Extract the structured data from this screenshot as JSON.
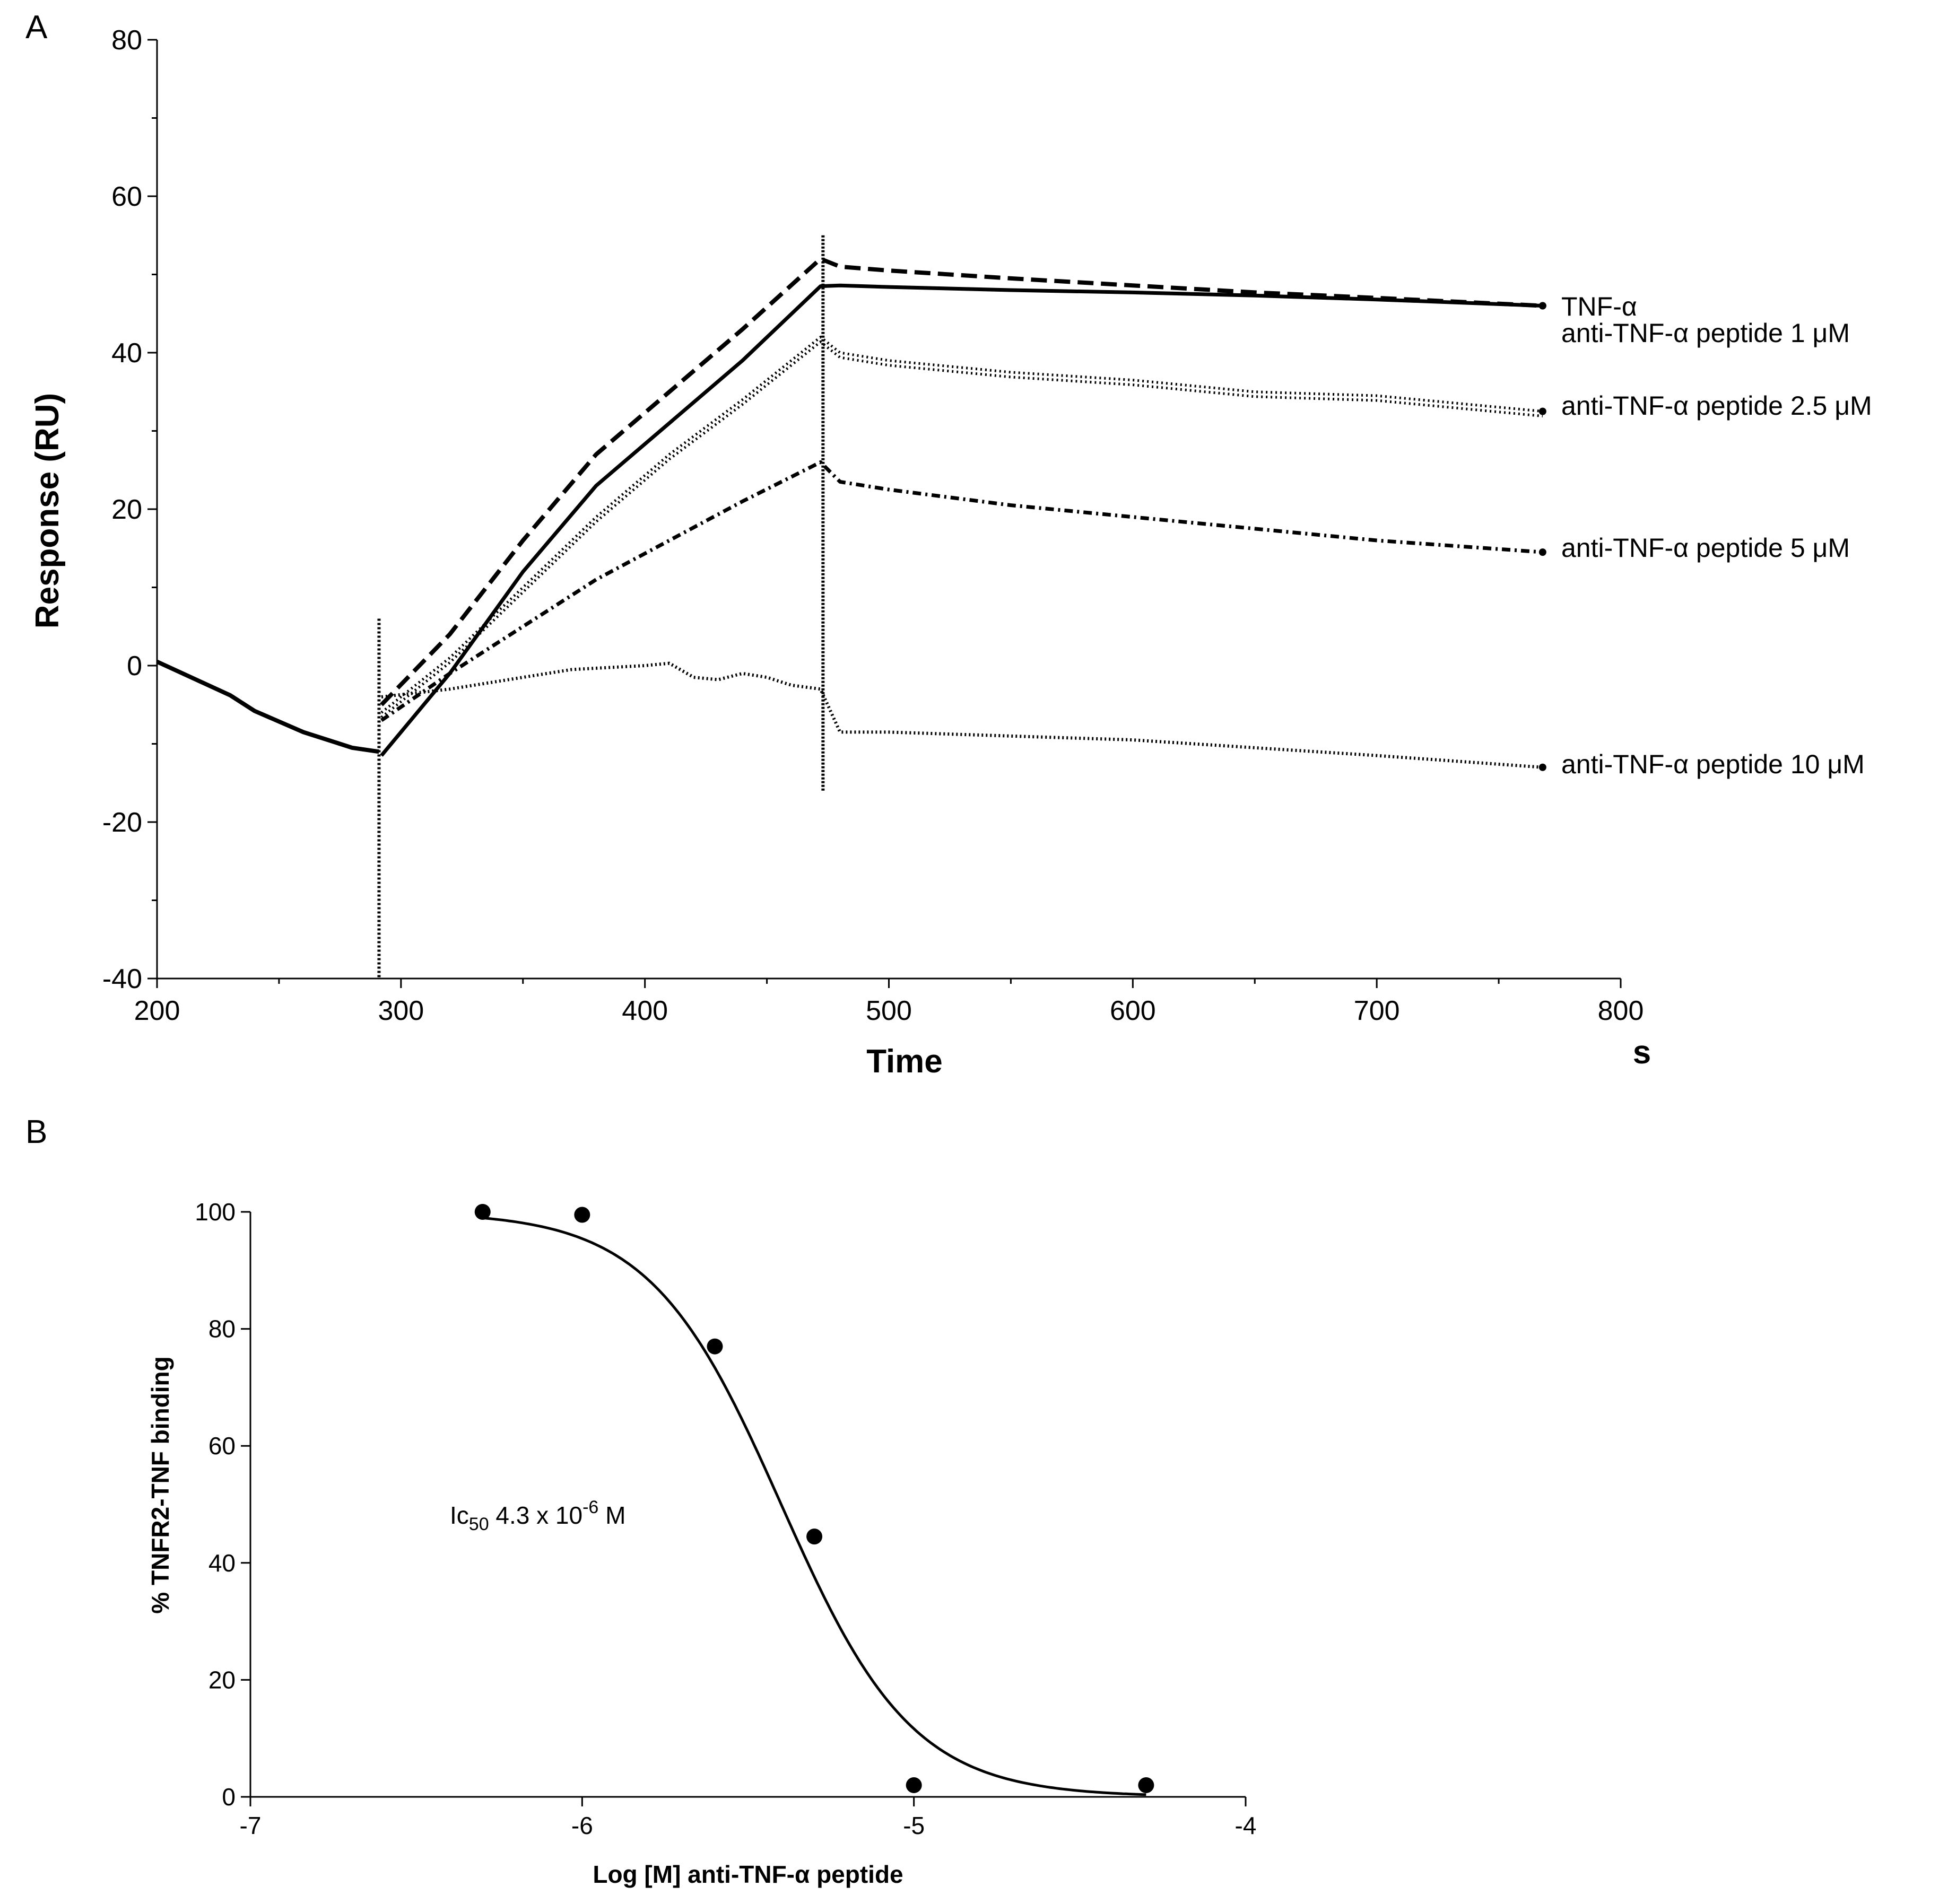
{
  "chart_data": [
    {
      "panel": "A",
      "type": "line",
      "title": "",
      "xlabel": "Time",
      "xunit": "s",
      "ylabel": "Response (RU)",
      "xlim": [
        200,
        800
      ],
      "ylim": [
        -40,
        80
      ],
      "xticks": [
        200,
        300,
        400,
        500,
        600,
        700,
        800
      ],
      "yticks": [
        -40,
        -20,
        0,
        20,
        40,
        60,
        80
      ],
      "grid": false,
      "baseline": [
        [
          200,
          0.5
        ],
        [
          230,
          -3.8
        ],
        [
          240,
          -5.8
        ],
        [
          260,
          -8.5
        ],
        [
          280,
          -10.5
        ],
        [
          291,
          -11
        ]
      ],
      "series": [
        {
          "name": "TNF-α",
          "style": "dashed",
          "points": [
            [
              292,
              -5
            ],
            [
              320,
              4
            ],
            [
              350,
              16
            ],
            [
              380,
              27
            ],
            [
              410,
              35
            ],
            [
              440,
              43
            ],
            [
              472,
              52
            ],
            [
              480,
              51
            ],
            [
              500,
              50.5
            ],
            [
              550,
              49.5
            ],
            [
              600,
              48.6
            ],
            [
              650,
              47.7
            ],
            [
              700,
              47
            ],
            [
              768,
              46
            ]
          ]
        },
        {
          "name": "anti-TNF-α peptide 1 μM",
          "style": "solid",
          "points": [
            [
              292,
              -11.5
            ],
            [
              320,
              -1
            ],
            [
              350,
              12
            ],
            [
              380,
              23
            ],
            [
              410,
              31
            ],
            [
              440,
              39
            ],
            [
              472,
              48.5
            ],
            [
              480,
              48.6
            ],
            [
              500,
              48.4
            ],
            [
              550,
              48
            ],
            [
              600,
              47.7
            ],
            [
              650,
              47.3
            ],
            [
              700,
              46.8
            ],
            [
              768,
              46
            ]
          ]
        },
        {
          "name": "anti-TNF-α peptide 2.5 μM",
          "style": "dotted-double",
          "points": [
            [
              292,
              -6
            ],
            [
              320,
              1
            ],
            [
              350,
              10
            ],
            [
              380,
              19
            ],
            [
              410,
              27
            ],
            [
              440,
              34
            ],
            [
              472,
              42
            ],
            [
              480,
              40
            ],
            [
              500,
              39
            ],
            [
              550,
              37.5
            ],
            [
              600,
              36.5
            ],
            [
              650,
              35
            ],
            [
              700,
              34.5
            ],
            [
              768,
              32.5
            ]
          ]
        },
        {
          "name": "anti-TNF-α peptide 5 μM",
          "style": "dash-dot",
          "points": [
            [
              292,
              -7
            ],
            [
              320,
              -1
            ],
            [
              350,
              5
            ],
            [
              380,
              11
            ],
            [
              410,
              16
            ],
            [
              440,
              21
            ],
            [
              472,
              26
            ],
            [
              480,
              23.5
            ],
            [
              500,
              22.5
            ],
            [
              550,
              20.5
            ],
            [
              600,
              19
            ],
            [
              650,
              17.5
            ],
            [
              700,
              16
            ],
            [
              768,
              14.5
            ]
          ]
        },
        {
          "name": "anti-TNF-α peptide 10 μM",
          "style": "dotted",
          "points": [
            [
              292,
              -4
            ],
            [
              320,
              -3
            ],
            [
              350,
              -1.5
            ],
            [
              370,
              -0.5
            ],
            [
              400,
              0
            ],
            [
              410,
              0.3
            ],
            [
              420,
              -1.5
            ],
            [
              430,
              -1.8
            ],
            [
              440,
              -1
            ],
            [
              450,
              -1.5
            ],
            [
              460,
              -2.5
            ],
            [
              472,
              -3
            ],
            [
              480,
              -8.5
            ],
            [
              500,
              -8.5
            ],
            [
              550,
              -9
            ],
            [
              600,
              -9.5
            ],
            [
              650,
              -10.5
            ],
            [
              700,
              -11.5
            ],
            [
              768,
              -13
            ]
          ]
        }
      ]
    },
    {
      "panel": "B",
      "type": "scatter",
      "title": "",
      "xlabel": "Log [M] anti-TNF-α peptide",
      "ylabel": "% TNFR2-TNF binding",
      "xlim": [
        -7,
        -4
      ],
      "ylim": [
        0,
        100
      ],
      "xticks": [
        -7,
        -6,
        -5,
        -4
      ],
      "yticks": [
        0,
        20,
        40,
        60,
        80,
        100
      ],
      "grid": false,
      "points": [
        [
          -6.3,
          100
        ],
        [
          -6.0,
          99.5
        ],
        [
          -5.6,
          77
        ],
        [
          -5.3,
          44.5
        ],
        [
          -5.0,
          2
        ],
        [
          -4.3,
          2
        ]
      ],
      "fit": {
        "model": "four-parameter logistic",
        "top": 100,
        "bottom": 0,
        "logIC50": -5.4,
        "hillslope": -2.2,
        "x_range": [
          -6.3,
          -4.3
        ]
      },
      "annotation": {
        "prefix": "Ic",
        "subscript": "50",
        "value": "4.3 x 10",
        "exponent": "-6",
        "unit": "M"
      }
    }
  ],
  "labels": {
    "panel_a": "A",
    "panel_b": "B",
    "series_label_tnf": "TNF-α",
    "series_label_1": "anti-TNF-α peptide  1 μM",
    "series_label_2": "anti-TNF-α peptide  2.5 μM",
    "series_label_3": "anti-TNF-α peptide  5 μM",
    "series_label_4": "anti-TNF-α peptide  10 μM"
  }
}
